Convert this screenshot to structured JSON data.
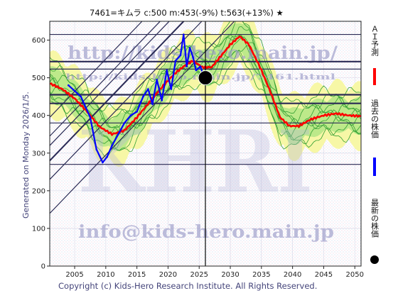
{
  "title": "7461=キムラ    c:500   m:453(-9%)   t:563(+13%)   ★",
  "side_text": "Generated on Monday 2026/1/5.",
  "copyright": "Copyright (c) Kids-Hero Research Institute. All Rights Reserved.",
  "watermarks": {
    "url": "http://kids-hero.main.jp/",
    "url_small": "http://kids-hero.main.jp/7461.html",
    "email": "info@kids-hero.main.jp",
    "big": "KHRI"
  },
  "legend": [
    {
      "label": "ＡＩ予測",
      "color": "#ff0000"
    },
    {
      "label": "過去の株価",
      "color": "#0000ff"
    },
    {
      "label": "最新の株価",
      "color": "#000000"
    }
  ],
  "colors": {
    "ai_line": "#ff0000",
    "past_price": "#0000ff",
    "latest_marker": "#000000",
    "band_outer": "#f7f7a6",
    "band_inner": "#bde98a",
    "projection_lines": "#33a033",
    "trend_lines": "#2a2a55",
    "horizontal_lines": "#2a2a55"
  },
  "chart_data": {
    "type": "line",
    "xlim": [
      2001,
      2051
    ],
    "ylim": [
      0,
      650
    ],
    "x_ticks": [
      2005,
      2010,
      2015,
      2020,
      2025,
      2030,
      2035,
      2040,
      2045,
      2050
    ],
    "y_ticks": [
      0,
      100,
      200,
      300,
      400,
      500,
      600
    ],
    "grid": true,
    "current_marker": {
      "x": 2026.0,
      "y": 500
    },
    "current_vertical_line": 2026.0,
    "horizontal_lines": [
      {
        "y": 615,
        "weight": "thin"
      },
      {
        "y": 543,
        "weight": "thick"
      },
      {
        "y": 523,
        "weight": "thin"
      },
      {
        "y": 455,
        "weight": "thick"
      },
      {
        "y": 432,
        "weight": "thick"
      },
      {
        "y": 380,
        "weight": "thin"
      },
      {
        "y": 270,
        "weight": "thin"
      }
    ],
    "trend_lines": [
      {
        "x": [
          2001,
          2051
        ],
        "y": [
          140,
          1000
        ]
      },
      {
        "x": [
          2001,
          2051
        ],
        "y": [
          230,
          1090
        ]
      },
      {
        "x": [
          2001,
          2051
        ],
        "y": [
          280,
          1140
        ]
      },
      {
        "x": [
          2001,
          2051
        ],
        "y": [
          320,
          1180
        ]
      },
      {
        "x": [
          2001,
          2051
        ],
        "y": [
          345,
          1205
        ]
      },
      {
        "x": [
          2001,
          2051
        ],
        "y": [
          395,
          1255
        ]
      }
    ],
    "series": [
      {
        "name": "ＡＩ予測",
        "x": [
          2001,
          2003,
          2005,
          2007,
          2009,
          2011,
          2013,
          2015,
          2017,
          2019,
          2021,
          2022.5,
          2024,
          2025.5,
          2027,
          2028.5,
          2030,
          2031.5,
          2033,
          2035,
          2036.5,
          2038,
          2039.5,
          2041,
          2043,
          2045,
          2047,
          2049,
          2051
        ],
        "y": [
          485,
          470,
          445,
          410,
          370,
          350,
          360,
          395,
          435,
          475,
          510,
          530,
          545,
          528,
          528,
          558,
          588,
          610,
          588,
          520,
          460,
          395,
          372,
          372,
          390,
          400,
          405,
          400,
          398
        ]
      },
      {
        "name": "過去の株価",
        "x": [
          2004,
          2006,
          2007.5,
          2008.5,
          2009.5,
          2010.2,
          2011,
          2012,
          2013,
          2014,
          2015,
          2016,
          2016.8,
          2017.5,
          2018.2,
          2019,
          2019.8,
          2020.5,
          2021.2,
          2022,
          2022.5,
          2023,
          2023.5,
          2024,
          2024.5,
          2025.2,
          2025.8
        ],
        "y": [
          480,
          450,
          395,
          310,
          275,
          290,
          320,
          350,
          380,
          400,
          410,
          450,
          470,
          430,
          495,
          440,
          520,
          470,
          545,
          560,
          615,
          530,
          580,
          555,
          520,
          530,
          500
        ]
      }
    ]
  }
}
